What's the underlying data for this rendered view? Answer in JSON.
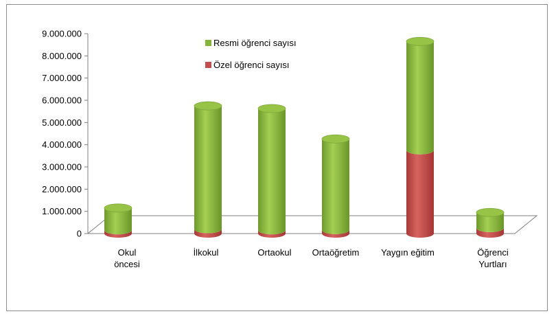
{
  "chart_data": {
    "type": "bar",
    "stacked": true,
    "style": "3d-cylinder",
    "categories": [
      [
        "Okul",
        "öncesi"
      ],
      [
        "İlkokul"
      ],
      [
        "Ortaokul"
      ],
      [
        "Ortaöğretim"
      ],
      [
        "Yaygın eğitim"
      ],
      [
        "Öğrenci",
        "Yurtları"
      ]
    ],
    "series": [
      {
        "name": "Özel öğrenci sayısı",
        "color": "#c0504d",
        "values": [
          150000,
          200000,
          150000,
          160000,
          3750000,
          250000
        ]
      },
      {
        "name": "Resmi öğrenci sayısı",
        "color": "#86b43a",
        "values": [
          1000000,
          5550000,
          5480000,
          4100000,
          4900000,
          700000
        ]
      }
    ],
    "ylim": [
      0,
      9000000
    ],
    "yticks": [
      0,
      1000000,
      2000000,
      3000000,
      4000000,
      5000000,
      6000000,
      7000000,
      8000000,
      9000000
    ],
    "ytick_labels": [
      "0",
      "1.000.000",
      "2.000.000",
      "3.000.000",
      "4.000.000",
      "5.000.000",
      "6.000.000",
      "7.000.000",
      "8.000.000",
      "9.000.000"
    ],
    "grid": false,
    "legend_position": "top-center"
  }
}
